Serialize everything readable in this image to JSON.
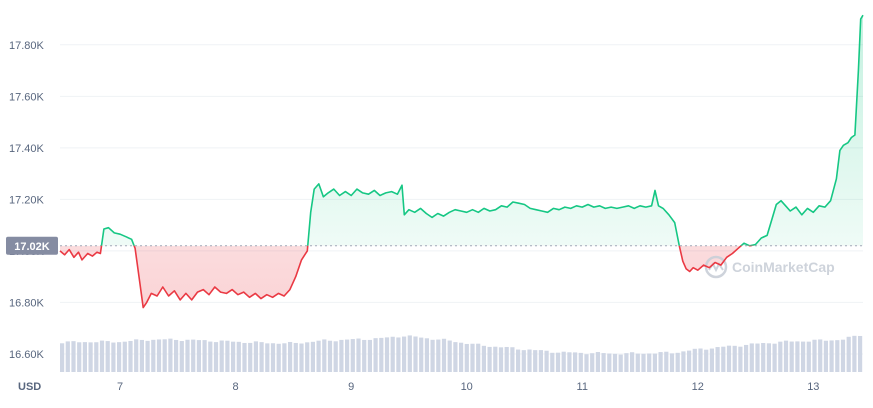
{
  "chart_data": {
    "type": "line",
    "currency_label": "USD",
    "reference_price": 17020,
    "reference_label": "17.02K",
    "watermark": "CoinMarketCap",
    "colors": {
      "up": "#16c784",
      "down": "#ea3943",
      "volume": "#cfd6e4",
      "grid": "#eff2f5",
      "badge": "#858ca2",
      "axis_text": "#58667e"
    },
    "x_range": [
      6.48,
      13.43
    ],
    "ylim": [
      16530,
      17935
    ],
    "y_ticks": [
      {
        "value": 16600,
        "label": "16.60K"
      },
      {
        "value": 16800,
        "label": "16.80K"
      },
      {
        "value": 17000,
        "label": "17.00K"
      },
      {
        "value": 17200,
        "label": "17.20K"
      },
      {
        "value": 17400,
        "label": "17.40K"
      },
      {
        "value": 17600,
        "label": "17.60K"
      },
      {
        "value": 17800,
        "label": "17.80K"
      }
    ],
    "x_ticks": [
      {
        "value": 7,
        "label": "7"
      },
      {
        "value": 8,
        "label": "8"
      },
      {
        "value": 9,
        "label": "9"
      },
      {
        "value": 10,
        "label": "10"
      },
      {
        "value": 11,
        "label": "11"
      },
      {
        "value": 12,
        "label": "12"
      },
      {
        "value": 13,
        "label": "13"
      }
    ],
    "price_series": [
      [
        6.48,
        17000
      ],
      [
        6.52,
        16985
      ],
      [
        6.56,
        17005
      ],
      [
        6.6,
        16975
      ],
      [
        6.64,
        16995
      ],
      [
        6.67,
        16965
      ],
      [
        6.72,
        16990
      ],
      [
        6.76,
        16980
      ],
      [
        6.8,
        16995
      ],
      [
        6.83,
        16990
      ],
      [
        6.86,
        17085
      ],
      [
        6.9,
        17090
      ],
      [
        6.95,
        17070
      ],
      [
        7.0,
        17065
      ],
      [
        7.05,
        17055
      ],
      [
        7.1,
        17045
      ],
      [
        7.13,
        17010
      ],
      [
        7.17,
        16880
      ],
      [
        7.2,
        16780
      ],
      [
        7.23,
        16800
      ],
      [
        7.27,
        16835
      ],
      [
        7.32,
        16825
      ],
      [
        7.37,
        16860
      ],
      [
        7.42,
        16825
      ],
      [
        7.47,
        16845
      ],
      [
        7.52,
        16810
      ],
      [
        7.57,
        16835
      ],
      [
        7.62,
        16810
      ],
      [
        7.67,
        16840
      ],
      [
        7.72,
        16850
      ],
      [
        7.77,
        16830
      ],
      [
        7.82,
        16860
      ],
      [
        7.87,
        16840
      ],
      [
        7.92,
        16835
      ],
      [
        7.97,
        16850
      ],
      [
        8.02,
        16830
      ],
      [
        8.07,
        16840
      ],
      [
        8.12,
        16820
      ],
      [
        8.17,
        16835
      ],
      [
        8.22,
        16815
      ],
      [
        8.27,
        16830
      ],
      [
        8.32,
        16820
      ],
      [
        8.37,
        16835
      ],
      [
        8.42,
        16825
      ],
      [
        8.47,
        16850
      ],
      [
        8.52,
        16900
      ],
      [
        8.57,
        16965
      ],
      [
        8.62,
        17000
      ],
      [
        8.65,
        17150
      ],
      [
        8.68,
        17240
      ],
      [
        8.72,
        17260
      ],
      [
        8.76,
        17210
      ],
      [
        8.8,
        17225
      ],
      [
        8.85,
        17240
      ],
      [
        8.9,
        17215
      ],
      [
        8.95,
        17230
      ],
      [
        9.0,
        17215
      ],
      [
        9.05,
        17240
      ],
      [
        9.1,
        17225
      ],
      [
        9.15,
        17220
      ],
      [
        9.2,
        17235
      ],
      [
        9.25,
        17215
      ],
      [
        9.3,
        17225
      ],
      [
        9.35,
        17230
      ],
      [
        9.4,
        17220
      ],
      [
        9.44,
        17255
      ],
      [
        9.46,
        17140
      ],
      [
        9.5,
        17160
      ],
      [
        9.55,
        17150
      ],
      [
        9.6,
        17165
      ],
      [
        9.65,
        17145
      ],
      [
        9.7,
        17130
      ],
      [
        9.75,
        17145
      ],
      [
        9.8,
        17135
      ],
      [
        9.85,
        17150
      ],
      [
        9.9,
        17160
      ],
      [
        9.95,
        17155
      ],
      [
        10.0,
        17150
      ],
      [
        10.05,
        17160
      ],
      [
        10.1,
        17150
      ],
      [
        10.15,
        17165
      ],
      [
        10.2,
        17155
      ],
      [
        10.25,
        17160
      ],
      [
        10.3,
        17175
      ],
      [
        10.35,
        17170
      ],
      [
        10.4,
        17190
      ],
      [
        10.45,
        17185
      ],
      [
        10.5,
        17180
      ],
      [
        10.55,
        17165
      ],
      [
        10.6,
        17160
      ],
      [
        10.65,
        17155
      ],
      [
        10.7,
        17150
      ],
      [
        10.75,
        17165
      ],
      [
        10.8,
        17160
      ],
      [
        10.85,
        17170
      ],
      [
        10.9,
        17165
      ],
      [
        10.95,
        17175
      ],
      [
        11.0,
        17170
      ],
      [
        11.05,
        17180
      ],
      [
        11.1,
        17170
      ],
      [
        11.15,
        17175
      ],
      [
        11.2,
        17165
      ],
      [
        11.25,
        17170
      ],
      [
        11.3,
        17165
      ],
      [
        11.35,
        17170
      ],
      [
        11.4,
        17175
      ],
      [
        11.45,
        17165
      ],
      [
        11.5,
        17175
      ],
      [
        11.55,
        17170
      ],
      [
        11.6,
        17175
      ],
      [
        11.63,
        17235
      ],
      [
        11.66,
        17175
      ],
      [
        11.7,
        17165
      ],
      [
        11.75,
        17140
      ],
      [
        11.8,
        17110
      ],
      [
        11.84,
        17020
      ],
      [
        11.87,
        16960
      ],
      [
        11.9,
        16930
      ],
      [
        11.93,
        16920
      ],
      [
        11.96,
        16935
      ],
      [
        12.0,
        16925
      ],
      [
        12.05,
        16945
      ],
      [
        12.1,
        16935
      ],
      [
        12.15,
        16955
      ],
      [
        12.2,
        16945
      ],
      [
        12.25,
        16975
      ],
      [
        12.3,
        16990
      ],
      [
        12.35,
        17010
      ],
      [
        12.4,
        17030
      ],
      [
        12.45,
        17020
      ],
      [
        12.5,
        17025
      ],
      [
        12.55,
        17050
      ],
      [
        12.6,
        17060
      ],
      [
        12.64,
        17120
      ],
      [
        12.68,
        17180
      ],
      [
        12.72,
        17195
      ],
      [
        12.76,
        17175
      ],
      [
        12.8,
        17155
      ],
      [
        12.85,
        17170
      ],
      [
        12.9,
        17140
      ],
      [
        12.95,
        17165
      ],
      [
        13.0,
        17150
      ],
      [
        13.05,
        17175
      ],
      [
        13.1,
        17170
      ],
      [
        13.15,
        17195
      ],
      [
        13.2,
        17280
      ],
      [
        13.23,
        17390
      ],
      [
        13.26,
        17410
      ],
      [
        13.3,
        17420
      ],
      [
        13.33,
        17440
      ],
      [
        13.36,
        17450
      ],
      [
        13.39,
        17700
      ],
      [
        13.41,
        17900
      ],
      [
        13.43,
        17915
      ]
    ],
    "volume_series": [
      [
        6.5,
        0.55
      ],
      [
        6.75,
        0.56
      ],
      [
        7.0,
        0.56
      ],
      [
        7.25,
        0.6
      ],
      [
        7.5,
        0.6
      ],
      [
        7.75,
        0.58
      ],
      [
        8.0,
        0.56
      ],
      [
        8.25,
        0.54
      ],
      [
        8.5,
        0.53
      ],
      [
        8.75,
        0.58
      ],
      [
        9.0,
        0.6
      ],
      [
        9.25,
        0.62
      ],
      [
        9.45,
        0.67
      ],
      [
        9.6,
        0.64
      ],
      [
        9.85,
        0.58
      ],
      [
        10.1,
        0.5
      ],
      [
        10.35,
        0.45
      ],
      [
        10.6,
        0.4
      ],
      [
        10.85,
        0.36
      ],
      [
        11.1,
        0.35
      ],
      [
        11.35,
        0.34
      ],
      [
        11.6,
        0.35
      ],
      [
        11.8,
        0.36
      ],
      [
        12.0,
        0.42
      ],
      [
        12.25,
        0.47
      ],
      [
        12.5,
        0.52
      ],
      [
        12.75,
        0.56
      ],
      [
        13.0,
        0.58
      ],
      [
        13.25,
        0.6
      ],
      [
        13.43,
        0.7
      ]
    ]
  }
}
